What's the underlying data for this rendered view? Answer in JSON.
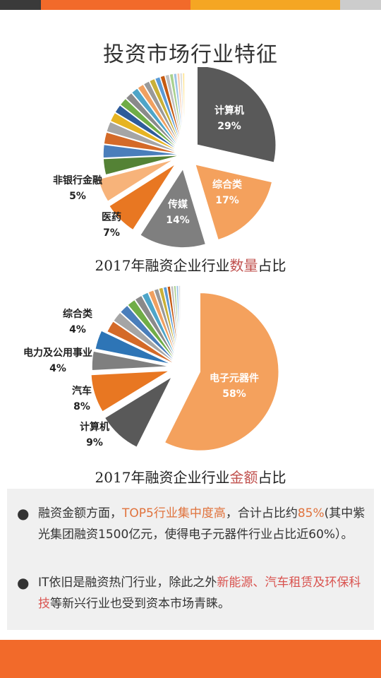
{
  "topbar_colors": [
    "#3a3a3a",
    "#f26a2a",
    "#f5a623",
    "#cccccc"
  ],
  "page_title": "投资市场行业特征",
  "chart_data": [
    {
      "type": "pie",
      "caption": {
        "prefix": "2017年融资企业行业",
        "highlight": "数量",
        "suffix": "占比"
      },
      "slices": [
        {
          "name": "计算机",
          "value": 29,
          "color": "#595959",
          "label": "计算机",
          "pct": "29%"
        },
        {
          "name": "综合类",
          "value": 17,
          "color": "#f4a15d",
          "label": "综合类",
          "pct": "17%"
        },
        {
          "name": "传媒",
          "value": 14,
          "color": "#7f7f7f",
          "label": "传媒",
          "pct": "14%"
        },
        {
          "name": "医药",
          "value": 7,
          "color": "#e87722",
          "label": "医药",
          "pct": "7%"
        },
        {
          "name": "非银行金融",
          "value": 5,
          "color": "#f7b37a",
          "label": "非银行金融",
          "pct": "5%"
        },
        {
          "name": "",
          "value": 3.4,
          "color": "#548235"
        },
        {
          "name": "",
          "value": 2.8,
          "color": "#4a7ebb"
        },
        {
          "name": "",
          "value": 2.5,
          "color": "#d46a28"
        },
        {
          "name": "",
          "value": 2.2,
          "color": "#a5a5a5"
        },
        {
          "name": "",
          "value": 2.0,
          "color": "#e6b422"
        },
        {
          "name": "",
          "value": 1.8,
          "color": "#2e5c9a"
        },
        {
          "name": "",
          "value": 1.7,
          "color": "#70ad47"
        },
        {
          "name": "",
          "value": 1.6,
          "color": "#8a8a8a"
        },
        {
          "name": "",
          "value": 1.5,
          "color": "#4ea5c8"
        },
        {
          "name": "",
          "value": 1.4,
          "color": "#f0a060"
        },
        {
          "name": "",
          "value": 1.3,
          "color": "#999999"
        },
        {
          "name": "",
          "value": 1.2,
          "color": "#c9b037"
        },
        {
          "name": "",
          "value": 1.1,
          "color": "#5b9bd5"
        },
        {
          "name": "",
          "value": 1.0,
          "color": "#c55a11"
        },
        {
          "name": "",
          "value": 0.9,
          "color": "#bfbfbf"
        },
        {
          "name": "",
          "value": 0.8,
          "color": "#a9d18e"
        },
        {
          "name": "",
          "value": 0.7,
          "color": "#9dc3e6"
        },
        {
          "name": "",
          "value": 0.6,
          "color": "#f8cbad"
        },
        {
          "name": "",
          "value": 0.5,
          "color": "#d9d9d9"
        },
        {
          "name": "",
          "value": 0.5,
          "color": "#ffe699"
        }
      ]
    },
    {
      "type": "pie",
      "caption": {
        "prefix": "2017年融资企业行业",
        "highlight": "金额",
        "suffix": "占比"
      },
      "slices": [
        {
          "name": "电子元器件",
          "value": 58,
          "color": "#f4a15d",
          "label": "电子元器件",
          "pct": "58%"
        },
        {
          "name": "计算机",
          "value": 9,
          "color": "#595959",
          "label": "计算机",
          "pct": "9%"
        },
        {
          "name": "汽车",
          "value": 8,
          "color": "#e87722",
          "label": "汽车",
          "pct": "8%"
        },
        {
          "name": "电力及公用事业",
          "value": 4,
          "color": "#7f7f7f",
          "label": "电力及公用事业",
          "pct": "4%"
        },
        {
          "name": "综合类",
          "value": 4,
          "color": "#2e75b6",
          "label": "综合类",
          "pct": "4%"
        },
        {
          "name": "",
          "value": 2.5,
          "color": "#d46a28"
        },
        {
          "name": "",
          "value": 2.2,
          "color": "#a5a5a5"
        },
        {
          "name": "",
          "value": 2.0,
          "color": "#4a7ebb"
        },
        {
          "name": "",
          "value": 1.8,
          "color": "#70ad47"
        },
        {
          "name": "",
          "value": 1.6,
          "color": "#8a8a8a"
        },
        {
          "name": "",
          "value": 1.4,
          "color": "#4ea5c8"
        },
        {
          "name": "",
          "value": 1.2,
          "color": "#f0a060"
        },
        {
          "name": "",
          "value": 1.0,
          "color": "#999999"
        },
        {
          "name": "",
          "value": 0.9,
          "color": "#c9b037"
        },
        {
          "name": "",
          "value": 0.8,
          "color": "#5b9bd5"
        },
        {
          "name": "",
          "value": 0.7,
          "color": "#c55a11"
        },
        {
          "name": "",
          "value": 0.6,
          "color": "#bfbfbf"
        },
        {
          "name": "",
          "value": 0.5,
          "color": "#a9d18e"
        },
        {
          "name": "",
          "value": 0.5,
          "color": "#9dc3e6"
        },
        {
          "name": "",
          "value": 0.4,
          "color": "#d9d9d9"
        }
      ]
    }
  ],
  "summary": {
    "bullet_symbol": "●",
    "bullet1": {
      "part1": "融资金额方面，",
      "hl1": "TOP5行业集中度高",
      "part2": "，合计占比约",
      "hl2": "85%",
      "part3": "(其中紫光集团融资1500亿元，使得电子元器件行业占比近60%）。"
    },
    "bullet2": {
      "part1": "IT依旧是融资热门行业，除此之外",
      "hl1": "新能源、汽车租赁及环保科技",
      "part2": "等新兴行业也受到资本市场青睐。"
    }
  },
  "bottombar_color": "#f26a2a"
}
